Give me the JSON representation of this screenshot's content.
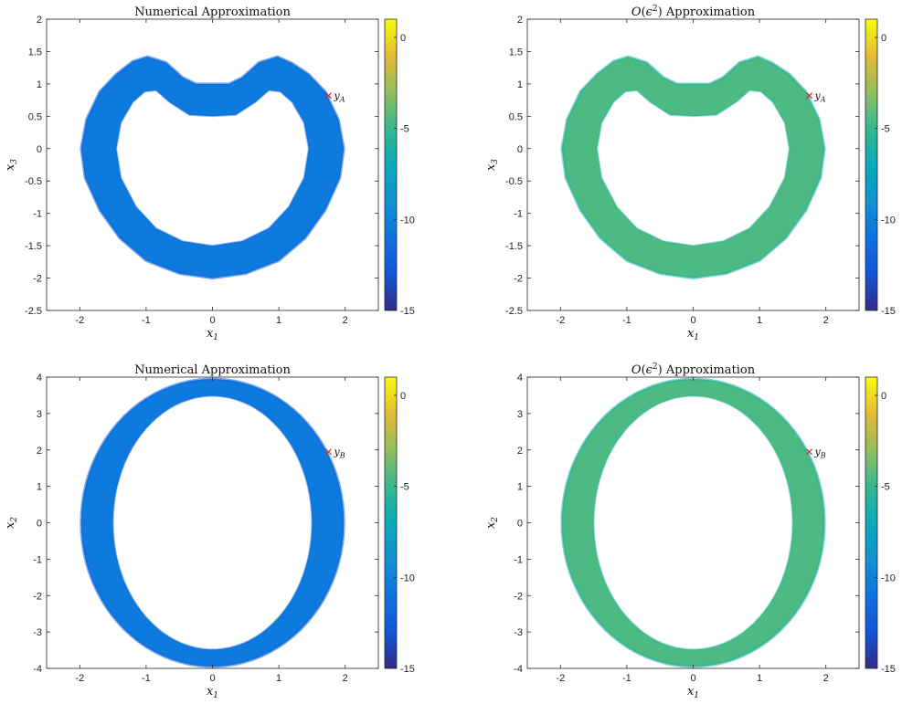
{
  "chart_data": [
    {
      "type": "heatmap",
      "title": "Numerical Approximation",
      "xlabel": "x1",
      "ylabel": "x3",
      "xlim": [
        -2.5,
        2.5
      ],
      "ylim": [
        -2.5,
        2
      ],
      "xticks": [
        -2,
        -1,
        0,
        1,
        2
      ],
      "yticks": [
        2,
        1.5,
        1,
        0.5,
        0,
        -0.5,
        -1,
        -1.5,
        -2,
        -2.5
      ],
      "xtick_labels": [
        "-2",
        "-1",
        "0",
        "1",
        "2"
      ],
      "ytick_labels": [
        "2",
        "1.5",
        "1",
        "0.5",
        "0",
        "-0.5",
        "-1",
        "-1.5",
        "-2",
        "-2.5"
      ],
      "colorbar": {
        "range": [
          -15,
          1
        ],
        "ticks": [
          0,
          -5,
          -10,
          -15
        ],
        "tick_labels": [
          "0",
          "-5",
          "-10",
          "-15"
        ]
      },
      "shape": "kidney",
      "typical_value": -10.5,
      "point": {
        "label": "yA",
        "x": 1.75,
        "y": 0.82
      }
    },
    {
      "type": "heatmap",
      "title": "O(ϵ2) Approximation",
      "xlabel": "x1",
      "ylabel": "x3",
      "xlim": [
        -2.5,
        2.5
      ],
      "ylim": [
        -2.5,
        2
      ],
      "xticks": [
        -2,
        -1,
        0,
        1,
        2
      ],
      "yticks": [
        2,
        1.5,
        1,
        0.5,
        0,
        -0.5,
        -1,
        -1.5,
        -2,
        -2.5
      ],
      "xtick_labels": [
        "-2",
        "-1",
        "0",
        "1",
        "2"
      ],
      "ytick_labels": [
        "2",
        "1.5",
        "1",
        "0.5",
        "0",
        "-0.5",
        "-1",
        "-1.5",
        "-2",
        "-2.5"
      ],
      "colorbar": {
        "range": [
          -15,
          1
        ],
        "ticks": [
          0,
          -5,
          -10,
          -15
        ],
        "tick_labels": [
          "0",
          "-5",
          "-10",
          "-15"
        ]
      },
      "shape": "kidney",
      "typical_value": -4.5,
      "point": {
        "label": "yA",
        "x": 1.75,
        "y": 0.82
      }
    },
    {
      "type": "heatmap",
      "title": "Numerical Approximation",
      "xlabel": "x1",
      "ylabel": "x2",
      "xlim": [
        -2.5,
        2.5
      ],
      "ylim": [
        -4,
        4
      ],
      "xticks": [
        -2,
        -1,
        0,
        1,
        2
      ],
      "yticks": [
        4,
        3,
        2,
        1,
        0,
        -1,
        -2,
        -3,
        -4
      ],
      "xtick_labels": [
        "-2",
        "-1",
        "0",
        "1",
        "2"
      ],
      "ytick_labels": [
        "4",
        "3",
        "2",
        "1",
        "0",
        "-1",
        "-2",
        "-3",
        "-4"
      ],
      "colorbar": {
        "range": [
          -15,
          1
        ],
        "ticks": [
          0,
          -5,
          -10,
          -15
        ],
        "tick_labels": [
          "0",
          "-5",
          "-10",
          "-15"
        ]
      },
      "shape": "ellipse",
      "typical_value": -10.5,
      "point": {
        "label": "yB",
        "x": 1.75,
        "y": 1.95
      }
    },
    {
      "type": "heatmap",
      "title": "O(ϵ2) Approximation",
      "xlabel": "x1",
      "ylabel": "x2",
      "xlim": [
        -2.5,
        2.5
      ],
      "ylim": [
        -4,
        4
      ],
      "xticks": [
        -2,
        -1,
        0,
        1,
        2
      ],
      "yticks": [
        4,
        3,
        2,
        1,
        0,
        -1,
        -2,
        -3,
        -4
      ],
      "xtick_labels": [
        "-2",
        "-1",
        "0",
        "1",
        "2"
      ],
      "ytick_labels": [
        "4",
        "3",
        "2",
        "1",
        "0",
        "-1",
        "-2",
        "-3",
        "-4"
      ],
      "colorbar": {
        "range": [
          -15,
          1
        ],
        "ticks": [
          0,
          -5,
          -10,
          -15
        ],
        "tick_labels": [
          "0",
          "-5",
          "-10",
          "-15"
        ]
      },
      "shape": "ellipse",
      "typical_value": -4.5,
      "point": {
        "label": "yB",
        "x": 1.75,
        "y": 1.95
      }
    }
  ]
}
